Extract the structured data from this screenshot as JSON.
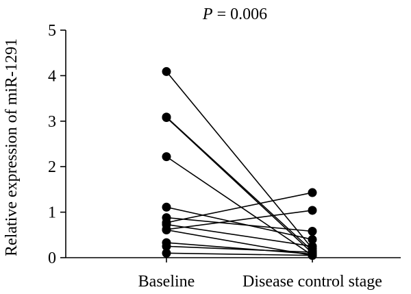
{
  "chart_data": {
    "type": "line",
    "title_prefix": "P",
    "title_suffix": " = 0.006",
    "xlabel": "",
    "ylabel": "Relative expression of miR-1291",
    "categories": [
      "Baseline",
      "Disease control stage"
    ],
    "ylim": [
      0,
      5
    ],
    "yticks": [
      "0",
      "1",
      "2",
      "3",
      "4",
      "5"
    ],
    "grid": false,
    "legend": "none",
    "series": [
      {
        "values": [
          4.09,
          0.2
        ]
      },
      {
        "values": [
          3.09,
          0.15
        ]
      },
      {
        "values": [
          3.08,
          0.1
        ]
      },
      {
        "values": [
          2.22,
          0.05
        ]
      },
      {
        "values": [
          1.11,
          0.4
        ]
      },
      {
        "values": [
          0.88,
          0.58
        ]
      },
      {
        "values": [
          0.77,
          1.43
        ]
      },
      {
        "values": [
          0.73,
          0.25
        ]
      },
      {
        "values": [
          0.62,
          1.04
        ]
      },
      {
        "values": [
          0.61,
          0.05
        ]
      },
      {
        "values": [
          0.33,
          0.08
        ]
      },
      {
        "values": [
          0.25,
          0.12
        ]
      },
      {
        "values": [
          0.1,
          0.05
        ]
      }
    ],
    "colors": {
      "line": "#000000",
      "point": "#000000"
    }
  }
}
